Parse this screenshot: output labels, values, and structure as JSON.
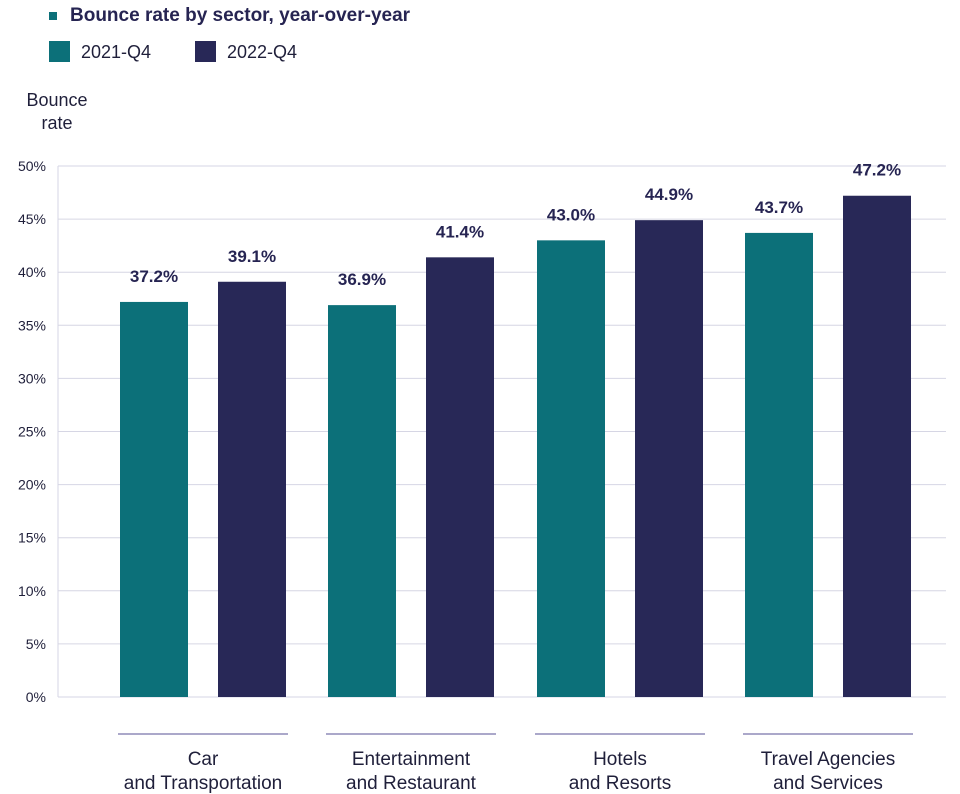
{
  "chart_data": {
    "type": "bar",
    "title": "Bounce rate by sector, year-over-year",
    "ylabel": [
      "Bounce",
      "rate"
    ],
    "ylim": [
      0,
      50
    ],
    "yticks": [
      "0%",
      "5%",
      "10%",
      "15%",
      "20%",
      "25%",
      "30%",
      "35%",
      "40%",
      "45%",
      "50%"
    ],
    "grid": true,
    "legend_placement": "top-left",
    "categories": [
      [
        "Car",
        "and Transportation"
      ],
      [
        "Entertainment",
        "and Restaurant"
      ],
      [
        "Hotels",
        "and Resorts"
      ],
      [
        "Travel Agencies",
        "and Services"
      ]
    ],
    "series": [
      {
        "name": "2021-Q4",
        "color": "#0c7079",
        "values": [
          37.2,
          36.9,
          43.0,
          43.7
        ],
        "labels": [
          "37.2%",
          "36.9%",
          "43.0%",
          "43.7%"
        ]
      },
      {
        "name": "2022-Q4",
        "color": "#282857",
        "values": [
          39.1,
          41.4,
          44.9,
          47.2
        ],
        "labels": [
          "39.1%",
          "41.4%",
          "44.9%",
          "47.2%"
        ]
      }
    ],
    "title_marker_color": "#0c7079"
  }
}
